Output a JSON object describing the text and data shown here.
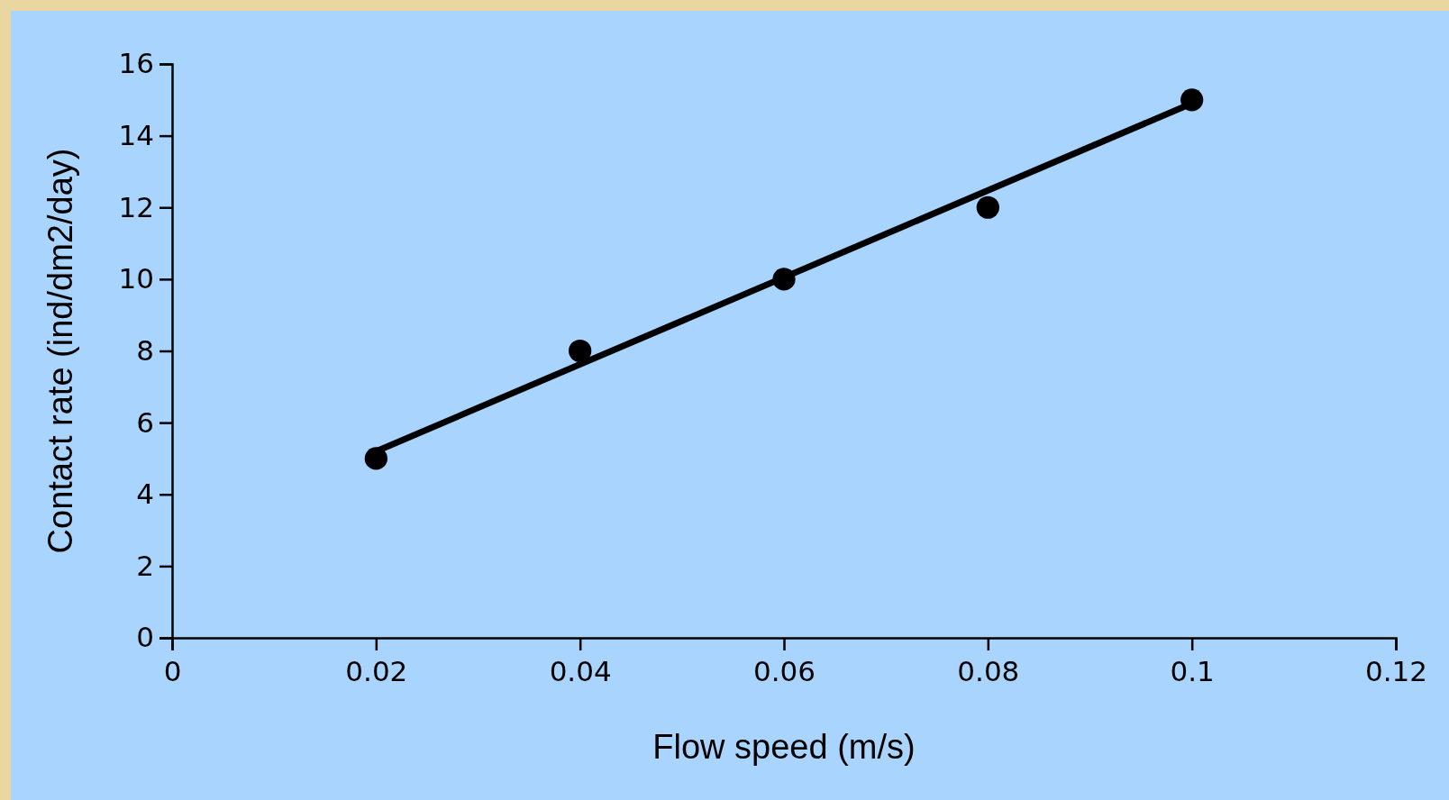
{
  "chart_data": {
    "type": "scatter",
    "xlabel": "Flow speed (m/s)",
    "ylabel": "Contact rate (ind/dm2/day)",
    "xlim": [
      0,
      0.12
    ],
    "xticks": [
      0,
      0.02,
      0.04,
      0.06,
      0.08,
      0.1,
      0.12
    ],
    "ylim": [
      0,
      16
    ],
    "yticks": [
      0,
      2,
      4,
      6,
      8,
      10,
      12,
      14,
      16
    ],
    "grid": false,
    "series": [
      {
        "marker": "circle",
        "color": "#000000",
        "x": [
          0.02,
          0.04,
          0.06,
          0.08,
          0.1
        ],
        "values": [
          5,
          8,
          10,
          12,
          15
        ]
      },
      {
        "type": "line",
        "color": "#000000",
        "x": [
          0.02,
          0.1
        ],
        "values": [
          5.2,
          14.9
        ]
      }
    ]
  }
}
